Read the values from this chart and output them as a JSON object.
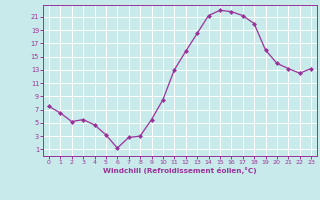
{
  "x": [
    0,
    1,
    2,
    3,
    4,
    5,
    6,
    7,
    8,
    9,
    10,
    11,
    12,
    13,
    14,
    15,
    16,
    17,
    18,
    19,
    20,
    21,
    22,
    23
  ],
  "y": [
    7.5,
    6.5,
    5.2,
    5.5,
    4.7,
    3.2,
    1.2,
    2.8,
    3.0,
    5.5,
    8.5,
    13.0,
    15.8,
    18.5,
    21.2,
    22.0,
    21.8,
    21.2,
    20.0,
    16.0,
    14.0,
    13.2,
    12.5,
    13.2
  ],
  "line_color": "#993399",
  "marker": "D",
  "marker_size": 2.0,
  "bg_color": "#c8eaea",
  "grid_color": "#ffffff",
  "tick_color": "#993399",
  "xlabel": "Windchill (Refroidissement éolien,°C)",
  "xlabel_color": "#993399",
  "ylabel_ticks": [
    1,
    3,
    5,
    7,
    9,
    11,
    13,
    15,
    17,
    19,
    21
  ],
  "xlim": [
    -0.5,
    23.5
  ],
  "ylim": [
    0.0,
    22.8
  ],
  "figwidth": 3.2,
  "figheight": 2.0,
  "dpi": 100
}
